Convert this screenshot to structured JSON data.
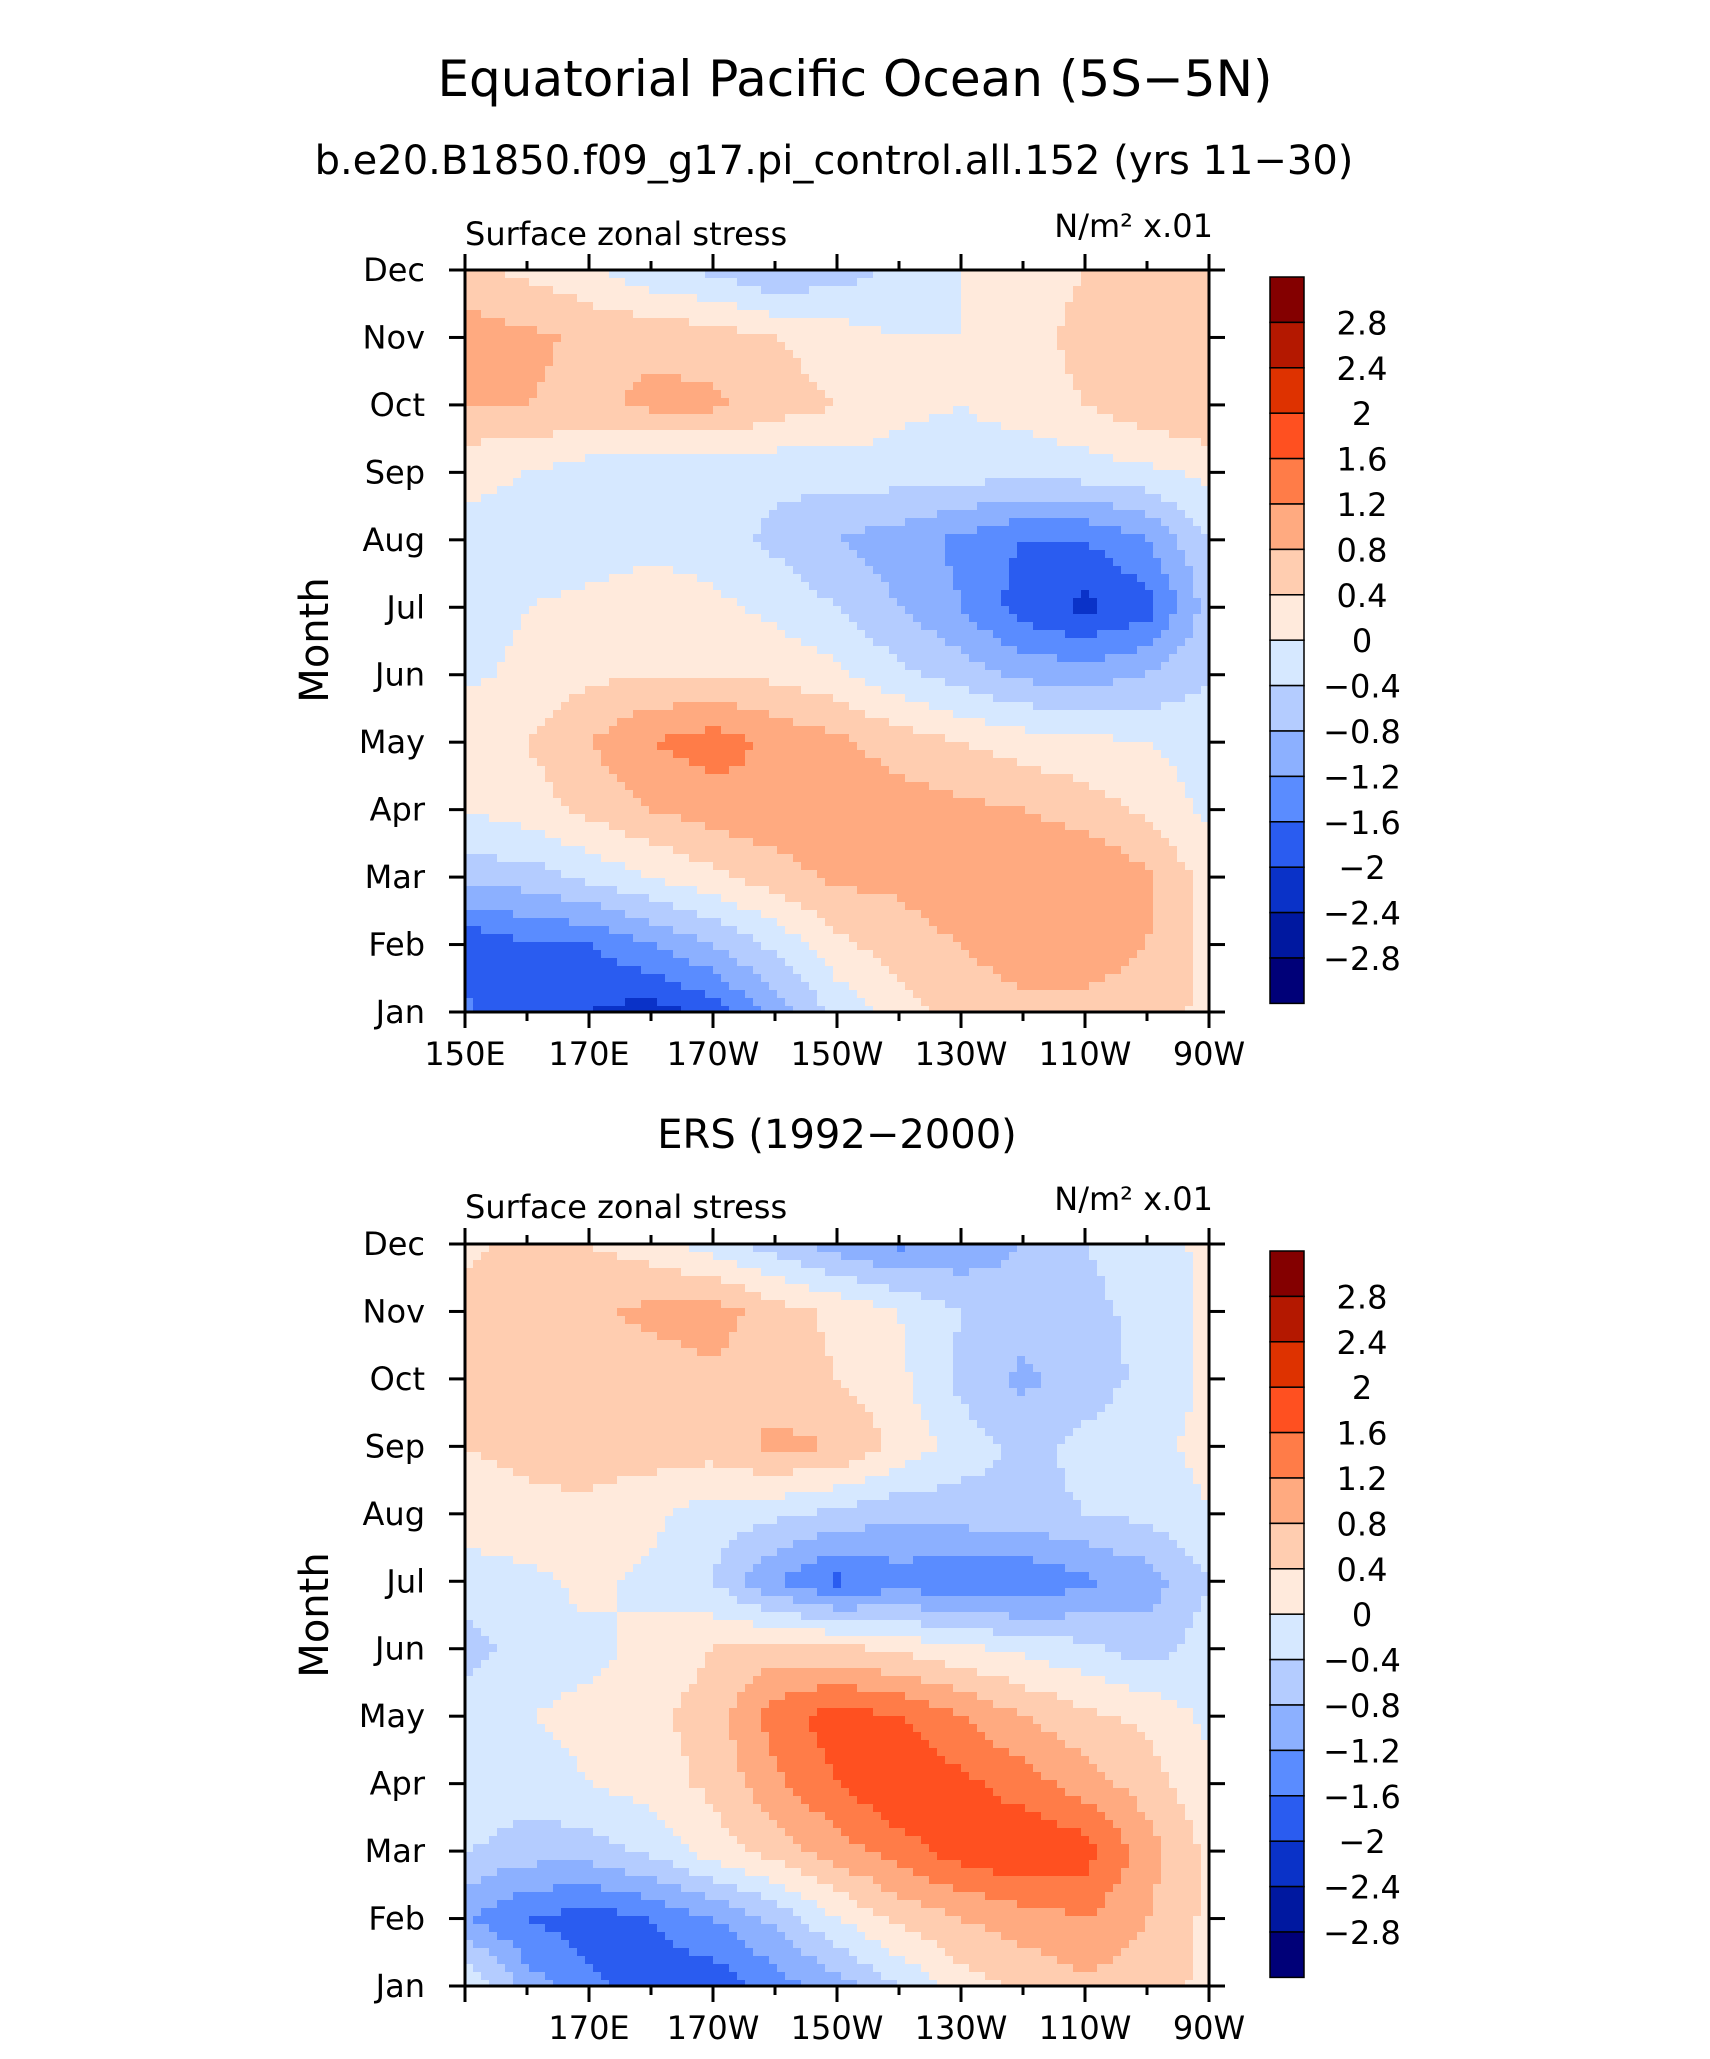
{
  "title": "Equatorial Pacific Ocean (5S−5N)",
  "colorbar": {
    "labels": [
      "2.8",
      "2.4",
      "2",
      "1.6",
      "1.2",
      "0.8",
      "0.4",
      "0",
      "−0.4",
      "−0.8",
      "−1.2",
      "−1.6",
      "−2",
      "−2.4",
      "−2.8"
    ],
    "colors": [
      "#840000",
      "#b41800",
      "#de3200",
      "#ff5020",
      "#ff7c48",
      "#ffaa80",
      "#ffcdb0",
      "#ffeadc",
      "#d6e8ff",
      "#b4ccff",
      "#8cb0ff",
      "#5a8cff",
      "#2a5cf0",
      "#0a32c8",
      "#0018a0",
      "#000078"
    ]
  },
  "chart_data": [
    {
      "type": "heatmap",
      "subtitle": "b.e20.B1850.f09_g17.pi_control.all.152 (yrs 11−30)",
      "left_label": "Surface zonal stress",
      "units_label": "N/m² x.01",
      "ylabel": "Month",
      "months": [
        "Jan",
        "Feb",
        "Mar",
        "Apr",
        "May",
        "Jun",
        "Jul",
        "Aug",
        "Sep",
        "Oct",
        "Nov",
        "Dec"
      ],
      "x_ticklabels": [
        "150E",
        "170E",
        "170W",
        "150W",
        "130W",
        "110W",
        "90W"
      ],
      "x": [
        150,
        160,
        170,
        180,
        190,
        200,
        210,
        220,
        230,
        240,
        250,
        260,
        270
      ],
      "xlim": [
        150,
        270
      ],
      "levels": [
        -2.8,
        -2.4,
        -2,
        -1.6,
        -1.2,
        -0.8,
        -0.4,
        0,
        0.4,
        0.8,
        1.2,
        1.6,
        2,
        2.4,
        2.8
      ],
      "z": [
        [
          -1.5,
          -2.0,
          -2.0,
          -2.2,
          -1.8,
          -1.0,
          -0.3,
          0.2,
          0.6,
          0.7,
          0.7,
          0.6,
          0.3
        ],
        [
          -2.0,
          -1.6,
          -1.6,
          -1.2,
          -0.8,
          -0.3,
          0.3,
          0.6,
          0.8,
          1.0,
          1.0,
          0.8,
          0.3
        ],
        [
          -0.6,
          -0.6,
          -0.3,
          0.0,
          0.3,
          0.6,
          0.9,
          0.9,
          1.1,
          1.2,
          1.2,
          0.9,
          0.2
        ],
        [
          0.0,
          0.2,
          0.5,
          0.8,
          1.0,
          1.1,
          1.1,
          1.0,
          0.9,
          0.8,
          0.6,
          0.3,
          -0.1
        ],
        [
          0.3,
          0.4,
          0.8,
          1.2,
          1.4,
          1.1,
          0.9,
          0.6,
          0.4,
          0.2,
          0.1,
          0.0,
          -0.2
        ],
        [
          -0.1,
          0.1,
          0.3,
          0.4,
          0.4,
          0.3,
          0.1,
          -0.3,
          -0.6,
          -0.9,
          -1.0,
          -0.8,
          -0.4
        ],
        [
          -0.2,
          0.0,
          0.1,
          0.2,
          0.1,
          -0.1,
          -0.4,
          -0.8,
          -1.2,
          -1.8,
          -2.1,
          -1.8,
          -0.6
        ],
        [
          -0.1,
          -0.2,
          -0.2,
          -0.1,
          -0.2,
          -0.5,
          -0.8,
          -1.0,
          -1.3,
          -1.6,
          -1.6,
          -1.2,
          -0.4
        ],
        [
          0.1,
          0.0,
          -0.2,
          -0.3,
          -0.3,
          -0.3,
          -0.2,
          -0.2,
          -0.2,
          -0.3,
          -0.2,
          -0.1,
          0.1
        ],
        [
          0.8,
          0.8,
          0.7,
          0.9,
          0.9,
          0.6,
          0.4,
          0.1,
          0.0,
          0.2,
          0.4,
          0.7,
          0.8
        ],
        [
          1.0,
          0.9,
          0.7,
          0.7,
          0.6,
          0.4,
          0.2,
          0.0,
          0.0,
          0.3,
          0.5,
          0.6,
          0.6
        ],
        [
          0.5,
          0.3,
          0.1,
          -0.3,
          -0.5,
          -0.8,
          -0.6,
          -0.3,
          0.0,
          0.2,
          0.4,
          0.5,
          0.5
        ]
      ]
    },
    {
      "type": "heatmap",
      "subtitle": "ERS (1992−2000)",
      "left_label": "Surface zonal stress",
      "units_label": "N/m² x.01",
      "ylabel": "Month",
      "months": [
        "Jan",
        "Feb",
        "Mar",
        "Apr",
        "May",
        "Jun",
        "Jul",
        "Aug",
        "Sep",
        "Oct",
        "Nov",
        "Dec"
      ],
      "x_ticklabels": [
        "170E",
        "170W",
        "150W",
        "130W",
        "110W",
        "90W"
      ],
      "x": [
        150,
        160,
        170,
        180,
        190,
        200,
        210,
        220,
        230,
        240,
        250,
        260,
        270
      ],
      "xlim": [
        150,
        270
      ],
      "levels": [
        -2.8,
        -2.4,
        -2,
        -1.6,
        -1.2,
        -0.8,
        -0.4,
        0,
        0.4,
        0.8,
        1.2,
        1.6,
        2,
        2.4,
        2.8
      ],
      "z": [
        [
          0.1,
          -1.0,
          -1.5,
          -1.8,
          -1.9,
          -1.4,
          -1.0,
          -0.4,
          0.2,
          0.5,
          0.7,
          0.6,
          0.3
        ],
        [
          -1.2,
          -1.6,
          -1.8,
          -1.6,
          -1.2,
          -0.7,
          0.0,
          0.5,
          0.8,
          1.0,
          1.2,
          0.8,
          0.3
        ],
        [
          -0.4,
          -0.6,
          -0.6,
          -0.3,
          0.2,
          0.6,
          1.0,
          1.4,
          1.8,
          2.0,
          1.8,
          1.0,
          0.3
        ],
        [
          0.0,
          -0.2,
          0.0,
          0.2,
          0.5,
          1.1,
          1.6,
          2.0,
          1.7,
          1.4,
          1.0,
          0.6,
          0.1
        ],
        [
          -0.1,
          0.0,
          0.1,
          0.3,
          0.6,
          1.4,
          1.8,
          1.6,
          1.2,
          0.8,
          0.5,
          0.3,
          -0.1
        ],
        [
          -0.6,
          -0.2,
          -0.1,
          0.1,
          0.4,
          0.6,
          0.5,
          0.3,
          0.1,
          -0.1,
          -0.3,
          -0.6,
          -0.2
        ],
        [
          -0.2,
          -0.1,
          0.1,
          -0.1,
          -0.4,
          -1.2,
          -1.7,
          -1.4,
          -1.6,
          -1.6,
          -1.3,
          -1.0,
          -0.4
        ],
        [
          0.2,
          0.3,
          0.3,
          0.1,
          -0.2,
          -0.3,
          -0.5,
          -0.7,
          -0.6,
          -0.5,
          -0.4,
          -0.3,
          0.0
        ],
        [
          0.4,
          0.5,
          0.6,
          0.6,
          0.6,
          0.9,
          0.8,
          0.3,
          -0.2,
          -0.5,
          -0.3,
          -0.1,
          0.1
        ],
        [
          0.5,
          0.6,
          0.6,
          0.6,
          0.7,
          0.6,
          0.4,
          0.1,
          -0.5,
          -0.9,
          -0.6,
          -0.3,
          0.1
        ],
        [
          0.6,
          0.6,
          0.7,
          0.9,
          1.0,
          0.6,
          0.3,
          0.0,
          -0.4,
          -0.6,
          -0.5,
          -0.3,
          0.1
        ],
        [
          0.3,
          0.5,
          0.4,
          0.2,
          -0.2,
          -0.6,
          -1.0,
          -1.3,
          -1.1,
          -0.8,
          -0.4,
          -0.2,
          0.1
        ]
      ]
    }
  ]
}
